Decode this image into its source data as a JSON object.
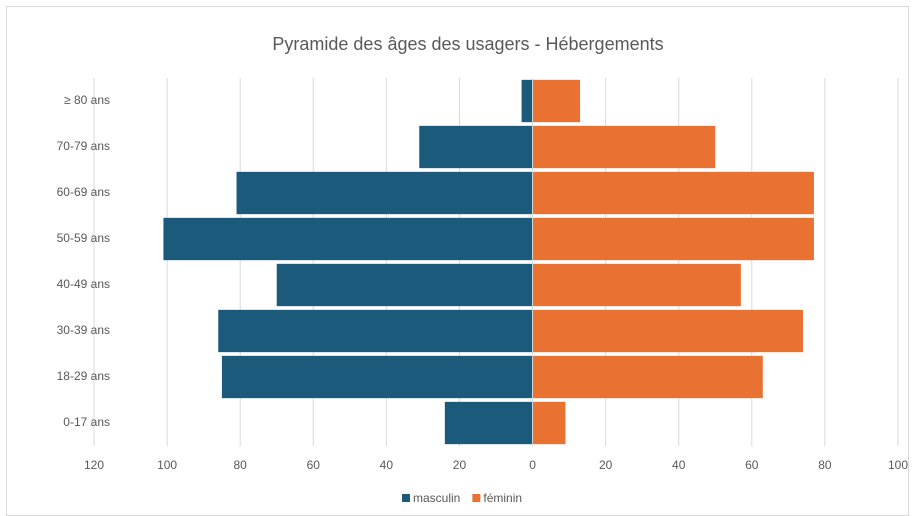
{
  "chart_data": {
    "type": "bar",
    "orientation": "horizontal",
    "title": "Pyramide des âges des usagers - Hébergements",
    "categories": [
      "≥ 80 ans",
      "70-79 ans",
      "60-69 ans",
      "50-59 ans",
      "40-49 ans",
      "30-39 ans",
      "18-29 ans",
      "0-17 ans"
    ],
    "series": [
      {
        "name": "masculin",
        "color": "#1b5a7a",
        "values": [
          -3,
          -31,
          -81,
          -101,
          -70,
          -86,
          -85,
          -24
        ]
      },
      {
        "name": "féminin",
        "color": "#e97132",
        "values": [
          13,
          50,
          77,
          77,
          57,
          74,
          63,
          9
        ]
      }
    ],
    "xlim": [
      -120,
      100
    ],
    "xticks": [
      {
        "value": -120,
        "label": "120"
      },
      {
        "value": -100,
        "label": "100"
      },
      {
        "value": -80,
        "label": "80"
      },
      {
        "value": -60,
        "label": "60"
      },
      {
        "value": -40,
        "label": "40"
      },
      {
        "value": -20,
        "label": "20"
      },
      0,
      20,
      40,
      60,
      80,
      100
    ],
    "grid": true,
    "legend": "bottom"
  }
}
